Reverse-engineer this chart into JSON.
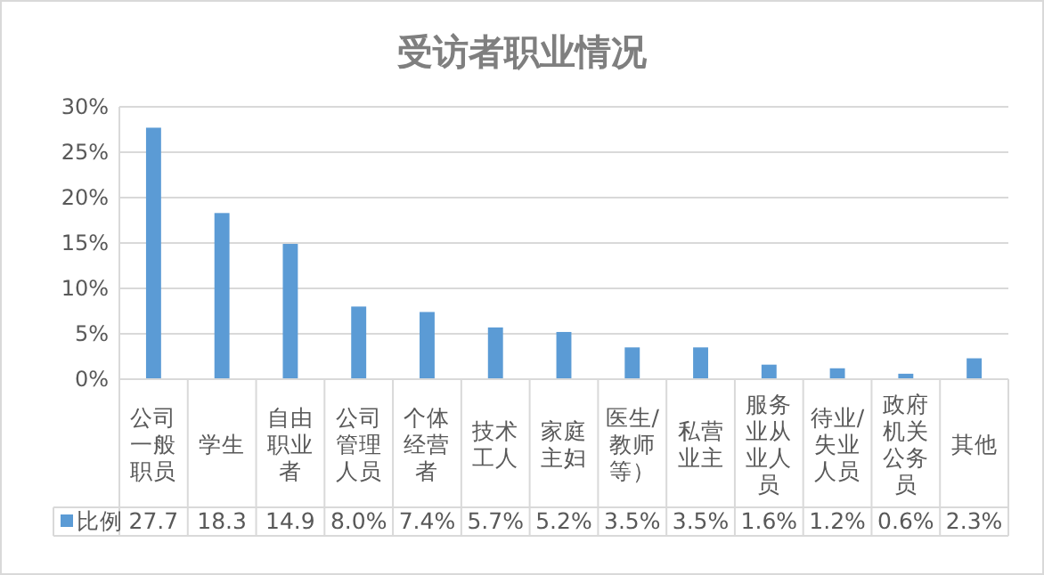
{
  "chart_data": {
    "type": "bar",
    "title": "受访者职业情况",
    "categories": [
      "公司一般职员",
      "学生",
      "自由职业者",
      "公司管理人员",
      "个体经营者",
      "技术工人",
      "家庭主妇",
      "医生/教师等）",
      "私营业主",
      "服务业从业人员",
      "待业/失业人员",
      "政府机关公务员",
      "其他"
    ],
    "series": [
      {
        "name": "比例",
        "color": "#5b9bd5",
        "values": [
          27.7,
          18.3,
          14.9,
          8.0,
          7.4,
          5.7,
          5.2,
          3.5,
          3.5,
          1.6,
          1.2,
          0.6,
          2.3
        ],
        "value_labels": [
          "27.7",
          "18.3",
          "14.9",
          "8.0%",
          "7.4%",
          "5.7%",
          "5.2%",
          "3.5%",
          "3.5%",
          "1.6%",
          "1.2%",
          "0.6%",
          "2.3%"
        ]
      }
    ],
    "ylim": [
      0,
      30
    ],
    "yticks": [
      {
        "value": 0,
        "label": "0%"
      },
      {
        "value": 5,
        "label": "5%"
      },
      {
        "value": 10,
        "label": "10%"
      },
      {
        "value": 15,
        "label": "15%"
      },
      {
        "value": 20,
        "label": "20%"
      },
      {
        "value": 25,
        "label": "25%"
      },
      {
        "value": 30,
        "label": "30%"
      }
    ],
    "grid": "y",
    "legend": "bottom"
  }
}
